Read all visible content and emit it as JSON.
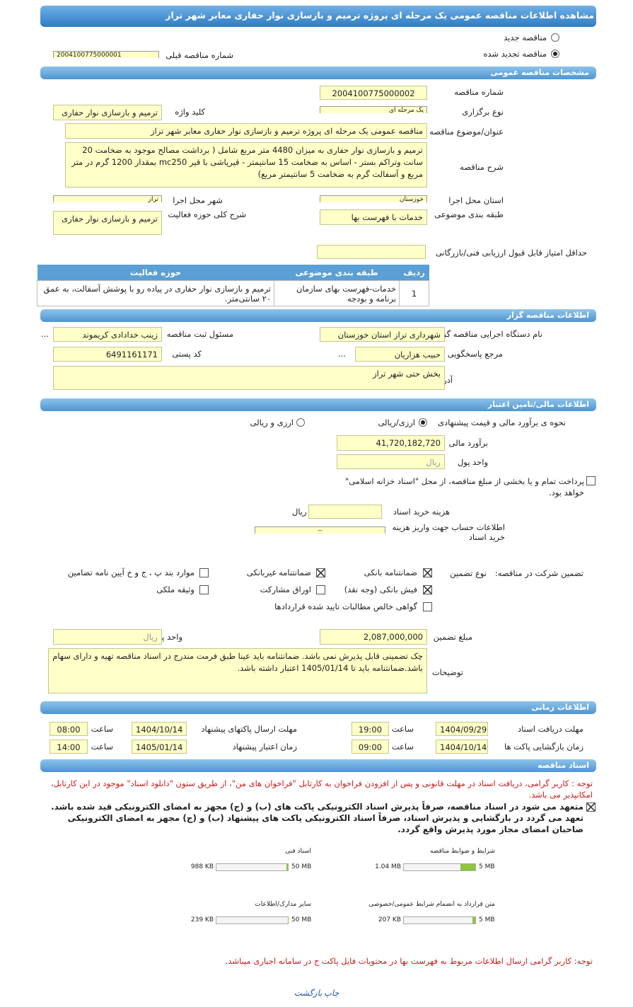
{
  "header": {
    "title": "مشاهده اطلاعات مناقصه عمومی یک مرحله ای پروژه ترمیم و بازسازی نوار حفاری معابر شهر تراز"
  },
  "type_options": {
    "new": "مناقصه جدید",
    "new_selected": false,
    "renewed": "مناقصه تجدید شده",
    "renewed_selected": true,
    "prev_label": "شماره مناقصه قبلی",
    "prev_value": "2004100775000001"
  },
  "general": {
    "title": "مشخصات مناقصه عمومی",
    "number_label": "شماره مناقصه",
    "number": "2004100775000002",
    "hold_label": "نوع برگزاری",
    "hold": "یک مرحله ای",
    "keyword_label": "کلید واژه",
    "keyword": "ترمیم و بازسازی  نوار حفاری",
    "subject_label": "عنوان/موضوع مناقصه",
    "subject": "مناقصه عمومی یک مرحله ای پروژه  ترمیم و بازسازی  نوار حفاری معابر شهر تراز",
    "desc_label": "شرح مناقصه",
    "desc": "ترمیم و بازسازی نوار حفاری به میزان 4480 متر مربع شامل ( برداشت مصالح موجود به ضخامت 20 سانت وتراکم بستر -  اساس به ضخامت 15 سانتیمتر - قیرپاشی با قیر mc250  بمقدار 1200 گرم در متر مربع و آسفالت گرم به ضخامت 5 سانتیمتر مربع)",
    "province_label": "استان محل اجرا",
    "province": "خوزستان",
    "city_label": "شهر محل اجرا",
    "city": "تراز",
    "category_label": "طبقه بندی موضوعی",
    "category": "خدمات با فهرست بها",
    "scope_label": "شرح کلی حوزه فعالیت",
    "scope": "ترمیم و بازسازی نوار حفاری",
    "min_score_label": "حداقل امتیاز قابل قبول ارزیابی فنی/بازرگانی"
  },
  "table": {
    "headers": [
      "ردیف",
      "طبقه بندی موضوعی",
      "حوزه فعالیت"
    ],
    "rows": [
      [
        "1",
        "خدمات-فهرست بهای سازمان برنامه و بودجه",
        "ترمیم و بازسازی نوار حفاری در پیاده رو با پوشش آسفالت، به عمق ۲۰ سانتی‌متر."
      ]
    ]
  },
  "organizer": {
    "title": "اطلاعات مناقصه گزار",
    "org_label": "نام دستگاه اجرایی مناقصه گزار",
    "org": "شهرداری تراز استان خوزستان",
    "registrar_label": "مسئول ثبت مناقصه",
    "registrar": "زینب خدادادی کریموند",
    "ref_label": "مرجع پاسخگویی",
    "ref": "حبیب هزاریان",
    "more": "...",
    "postal_label": "کد پستی",
    "postal": "6491161171",
    "address_label": "آدرس",
    "address": "بخش حتی شهر تراز"
  },
  "finance": {
    "title": "اطلاعات مالی/تامین اعتبار",
    "method_label": "نحوه ی برآورد مالی و قیمت پیشنهادی",
    "opt1": "ارزی/ریالی",
    "opt1_selected": true,
    "opt2": "ارزی و ریالی",
    "opt2_selected": false,
    "estimate_label": "برآورد مالی",
    "estimate": "41,720,182,720",
    "currency_label": "واحد پول",
    "currency": "ریال",
    "treasury": "پرداخت تمام و یا بخشی از مبلغ مناقصه، از محل \"اسناد خزانه اسلامی\" خواهد بود.",
    "treasury_checked": false,
    "doc_cost_label": "هزینه خرید اسناد",
    "doc_cost_unit": "ریال",
    "account_label": "اطلاعات حساب جهت واریز هزینه خرید اسناد",
    "account": "--"
  },
  "guarantee": {
    "label": "تضمین شرکت در مناقصه:",
    "type_label": "نوع تضمین",
    "options": [
      {
        "text": "ضمانتنامه بانکی",
        "checked": true
      },
      {
        "text": "ضمانتنامه غیربانکی",
        "checked": true
      },
      {
        "text": "موارد بند پ ، ج و خ آیین نامه تضامین",
        "checked": false
      },
      {
        "text": "فیش بانکی (وجه نقد)",
        "checked": true
      },
      {
        "text": "اوراق مشارکت",
        "checked": false
      },
      {
        "text": "وثیقه ملکی",
        "checked": false
      },
      {
        "text": "گواهی خالص مطالبات تایید شده قراردادها",
        "checked": false
      }
    ],
    "amount_label": "مبلغ تضمین",
    "amount": "2,087,000,000",
    "currency_label": "واحد پول",
    "currency": "ریال",
    "notes_label": "توضیحات",
    "notes": "چک تضمینی قابل پذیرش  نمی باشد. ضمانتنامه باید عینا طبق فرمت مندرج در اسناد مناقصه تهیه و دارای سهام باشد.ضمانتنامه باید تا 1405/01/14 اعتبار داشته باشد."
  },
  "timing": {
    "title": "اطلاعات زمانی",
    "time_label": "ساعت",
    "receive_label": "مهلت دریافت اسناد",
    "receive_date": "1404/09/29",
    "receive_time": "19:00",
    "submit_label": "مهلت ارسال پاکتهای پیشنهاد",
    "submit_date": "1404/10/14",
    "submit_time": "08:00",
    "open_label": "زمان بازگشایی پاکت ها",
    "open_date": "1404/10/14",
    "open_time": "09:00",
    "validity_label": "زمان اعتبار پیشنهاد",
    "validity_date": "1405/01/14",
    "validity_time": "14:00"
  },
  "docs": {
    "title": "اسناد مناقصه",
    "note1": "توجه : کاربر گرامی، دریافت اسناد در مهلت قانونی و پس از افزودن فراخوان به کارتابل \"فراخوان های من\"، از طریق ستون \"دانلود اسناد\" موجود در این کارتابل، امکانپذیر می باشد.",
    "commit": "متعهد می شود در اسناد مناقصه، صرفاً پذیرش اسناد الکترونیکی پاکت های (ب) و (ج) مجهز به امضای الکترونیکی قید شده باشد. تعهد می گردد در بازگشایی و پذیرش اسناد، صرفاً اسناد الکترونیکی پاکت های پیشنهاد (ب) و (ج) مجهز به امضای الکترونیکی صاحبان امضای مجاز مورد پذیرش واقع گردد.",
    "commit_checked": true,
    "files": [
      {
        "name": "شرایط و ضوابط مناقصه",
        "size": "1.04 MB",
        "max": "5 MB"
      },
      {
        "name": "اسناد فنی",
        "size": "988 KB",
        "max": "50 MB"
      },
      {
        "name": "متن قرارداد به انضمام شرایط عمومی/خصوصی",
        "size": "207 KB",
        "max": "5 MB"
      },
      {
        "name": "سایر مدارک/اطلاعات",
        "size": "239 KB",
        "max": "50 MB"
      }
    ],
    "note2": "توجه: کاربر گرامی ارسال اطلاعات مربوط به فهرست بها در محتویات فایل پاکت ج در سامانه اجباری میباشد."
  },
  "footer": {
    "print": "چاپ",
    "back": "بازگشت"
  }
}
